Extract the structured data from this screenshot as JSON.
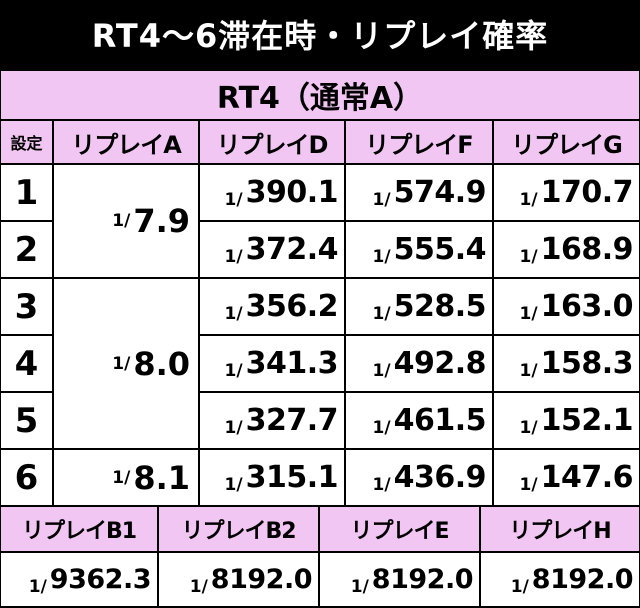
{
  "title": "RT4〜6滞在時・リプレイ確率",
  "table": {
    "mode_header": "RT4（通常A）",
    "setting_label": "設定",
    "columns": [
      "リプレイA",
      "リプレイD",
      "リプレイF",
      "リプレイG"
    ],
    "prefix": "1/",
    "settings": [
      "1",
      "2",
      "3",
      "4",
      "5",
      "6"
    ],
    "replayA": [
      "7.9",
      "8.0",
      "8.1"
    ],
    "replayD": [
      "390.1",
      "372.4",
      "356.2",
      "341.3",
      "327.7",
      "315.1"
    ],
    "replayF": [
      "574.9",
      "555.4",
      "528.5",
      "492.8",
      "461.5",
      "436.9"
    ],
    "replayG": [
      "170.7",
      "168.9",
      "163.0",
      "158.3",
      "152.1",
      "147.6"
    ]
  },
  "bottom": {
    "columns": [
      "リプレイB1",
      "リプレイB2",
      "リプレイE",
      "リプレイH"
    ],
    "values": [
      "9362.3",
      "8192.0",
      "8192.0",
      "8192.0"
    ]
  },
  "colors": {
    "header_bg": "#f2c6f2",
    "title_bg": "#000000",
    "cell_bg": "#ffffff"
  }
}
